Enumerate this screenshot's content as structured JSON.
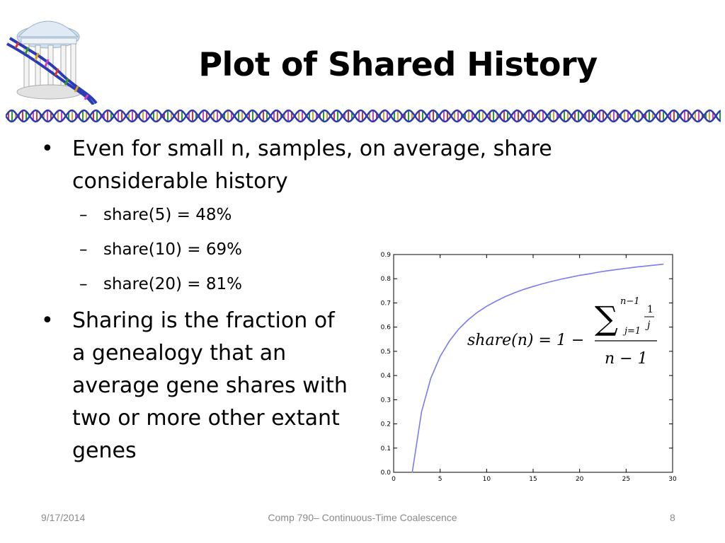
{
  "slide": {
    "title": "Plot of Shared History",
    "bullets": [
      {
        "text": "Even for small n, samples, on average, share considerable history",
        "subitems": [
          "share(5) = 48%",
          "share(10) = 69%",
          "share(20) = 81%"
        ]
      },
      {
        "text": "Sharing is the fraction of a genealogy that an average gene shares with two or more other extant genes"
      }
    ],
    "bullet_char": "•",
    "dash_char": "–"
  },
  "formula": {
    "lhs": "share(n) = 1 −",
    "sum_upper": "n−1",
    "sum_lower": "j=1",
    "frac_num": "1",
    "frac_den": "j",
    "denominator": "n − 1"
  },
  "chart_data": {
    "type": "line",
    "title": "",
    "xlabel": "",
    "ylabel": "",
    "xlim": [
      0,
      30
    ],
    "ylim": [
      0.0,
      0.9
    ],
    "x_ticks": [
      0,
      5,
      10,
      15,
      20,
      25,
      30
    ],
    "y_ticks": [
      0.0,
      0.1,
      0.2,
      0.3,
      0.4,
      0.5,
      0.6,
      0.7,
      0.8,
      0.9
    ],
    "series": [
      {
        "color": "#7b7bf2",
        "x": [
          2,
          3,
          4,
          5,
          6,
          7,
          8,
          9,
          10,
          11,
          12,
          13,
          14,
          15,
          16,
          17,
          18,
          19,
          20,
          21,
          22,
          23,
          24,
          25,
          26,
          27,
          28,
          29
        ],
        "y": [
          0.0,
          0.25,
          0.389,
          0.479,
          0.543,
          0.592,
          0.63,
          0.661,
          0.686,
          0.707,
          0.726,
          0.742,
          0.756,
          0.768,
          0.779,
          0.789,
          0.798,
          0.806,
          0.814,
          0.82,
          0.827,
          0.833,
          0.838,
          0.843,
          0.848,
          0.852,
          0.856,
          0.86
        ]
      }
    ],
    "grid": false
  },
  "footer": {
    "date": "9/17/2014",
    "course": "Comp 790– Continuous-Time Coalescence",
    "page": "8"
  },
  "colors": {
    "text": "#000000",
    "footer_text": "#8a8a8a",
    "dna_blue": "#2a3bb5",
    "line": "#7b7bf2"
  }
}
